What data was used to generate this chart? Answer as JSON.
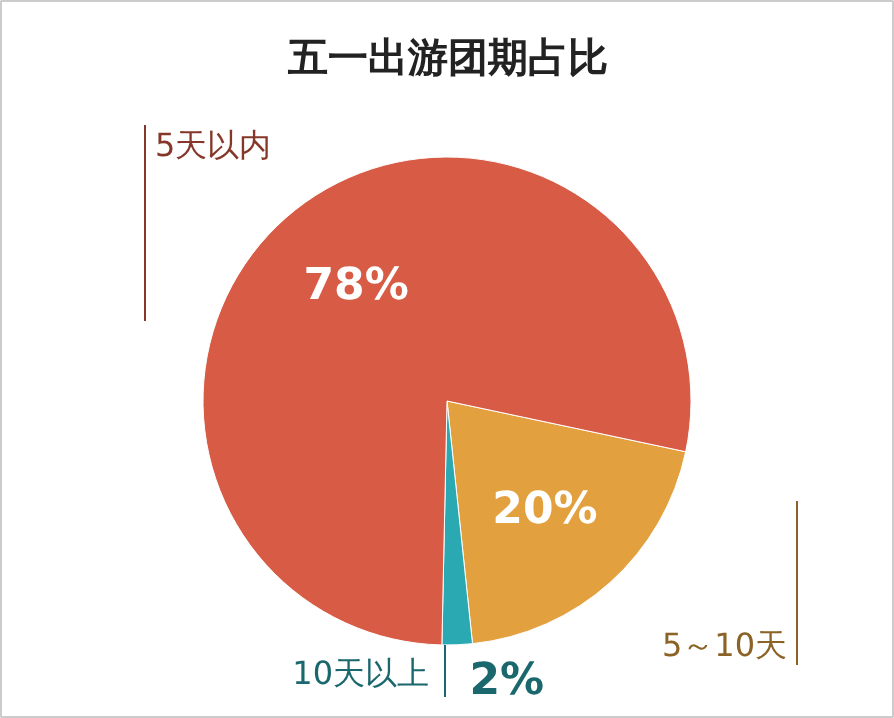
{
  "chart_data": {
    "type": "pie",
    "title": "五一出游团期占比",
    "categories": [
      "5天以内",
      "5～10天",
      "10天以上"
    ],
    "values": [
      78,
      20,
      2
    ],
    "colors": [
      "#d75b45",
      "#e3a03e",
      "#2aa9b3"
    ],
    "value_labels": [
      "78%",
      "20%",
      "2%"
    ]
  }
}
